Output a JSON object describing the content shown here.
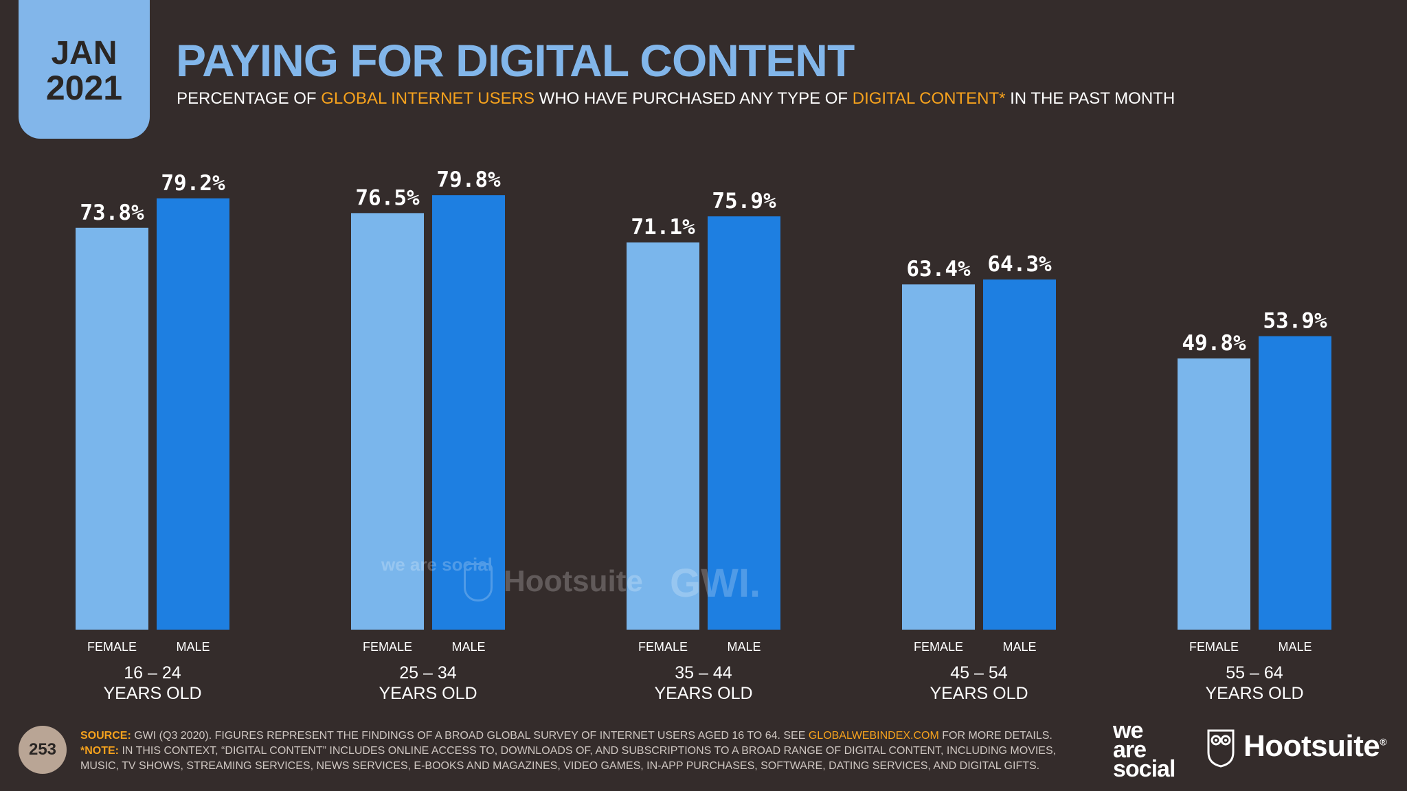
{
  "header": {
    "month": "JAN",
    "year": "2021",
    "title": "PAYING FOR DIGITAL CONTENT",
    "subtitle_parts": {
      "p1": "PERCENTAGE OF ",
      "h1": "GLOBAL INTERNET USERS",
      "p2": " WHO HAVE PURCHASED ANY TYPE OF ",
      "h2": "DIGITAL CONTENT*",
      "p3": " IN THE PAST MONTH"
    }
  },
  "colors": {
    "background": "#342c2b",
    "female": "#7ab6ec",
    "male": "#1e7fe1",
    "accent": "#f6a21d",
    "title": "#82b6ea"
  },
  "chart_data": {
    "type": "bar",
    "title": "PAYING FOR DIGITAL CONTENT",
    "categories": [
      "16 – 24 YEARS OLD",
      "25 – 34 YEARS OLD",
      "35 – 44 YEARS OLD",
      "45 – 54 YEARS OLD",
      "55 – 64 YEARS OLD"
    ],
    "category_lines": [
      [
        "16 – 24",
        "YEARS OLD"
      ],
      [
        "25 – 34",
        "YEARS OLD"
      ],
      [
        "35 – 44",
        "YEARS OLD"
      ],
      [
        "45 – 54",
        "YEARS OLD"
      ],
      [
        "55 – 64",
        "YEARS OLD"
      ]
    ],
    "series": [
      {
        "name": "FEMALE",
        "values": [
          73.8,
          76.5,
          71.1,
          63.4,
          49.8
        ],
        "labels": [
          "73.8%",
          "76.5%",
          "71.1%",
          "63.4%",
          "49.8%"
        ]
      },
      {
        "name": "MALE",
        "values": [
          79.2,
          79.8,
          75.9,
          64.3,
          53.9
        ],
        "labels": [
          "79.2%",
          "79.8%",
          "75.9%",
          "64.3%",
          "53.9%"
        ]
      }
    ],
    "ylim": [
      0,
      100
    ],
    "grid": false,
    "xlabel": "",
    "ylabel": ""
  },
  "watermark": {
    "we_are_social": "we are social",
    "hootsuite": "Hootsuite",
    "gwi": "GWI."
  },
  "footer": {
    "page_number": "253",
    "source_label": "SOURCE:",
    "source_text": " GWI (Q3 2020). FIGURES REPRESENT THE FINDINGS OF A BROAD GLOBAL SURVEY OF INTERNET USERS AGED 16 TO 64. SEE ",
    "source_link": "GLOBALWEBINDEX.COM",
    "source_end": " FOR MORE DETAILS.",
    "note_label": "*NOTE:",
    "note_text": " IN THIS CONTEXT, “DIGITAL CONTENT” INCLUDES ONLINE ACCESS TO, DOWNLOADS OF, AND SUBSCRIPTIONS TO A BROAD RANGE OF DIGITAL CONTENT, INCLUDING MOVIES, MUSIC, TV SHOWS, STREAMING SERVICES, NEWS SERVICES, E-BOOKS AND MAGAZINES, VIDEO GAMES, IN-APP PURCHASES, SOFTWARE, DATING SERVICES, AND DIGITAL GIFTS.",
    "logo_we": "we",
    "logo_are": "are",
    "logo_social": "social",
    "logo_hootsuite": "Hootsuite",
    "logo_reg": "®"
  }
}
